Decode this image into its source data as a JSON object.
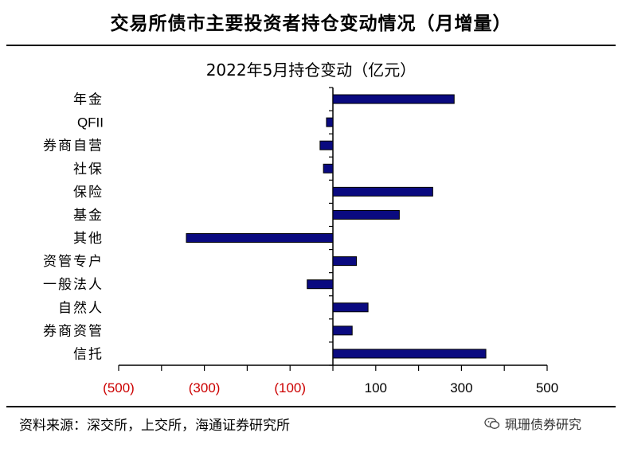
{
  "header": {
    "title": "交易所债市主要投资者持仓变动情况（月增量）"
  },
  "footer": {
    "source": "资料来源：深交所，上交所，海通证券研究所"
  },
  "watermark": {
    "text": "珮珊债券研究",
    "icon": "wechat-icon"
  },
  "colors": {
    "bar_fill": "#0a0a80",
    "bar_stroke": "#000000",
    "negative_tick": "#cc0000",
    "positive_tick": "#000000"
  },
  "chart_data": {
    "type": "bar",
    "orientation": "horizontal",
    "title": "2022年5月持仓变动（亿元）",
    "xlabel": "",
    "ylabel": "",
    "xlim": [
      -500,
      500
    ],
    "grid": false,
    "categories": [
      "年金",
      "QFII",
      "券商自营",
      "社保",
      "保险",
      "基金",
      "其他",
      "资管专户",
      "一般法人",
      "自然人",
      "券商资管",
      "信托"
    ],
    "values": [
      283,
      -15,
      -30,
      -22,
      233,
      155,
      -342,
      55,
      -60,
      82,
      45,
      357
    ],
    "x_ticks": [
      -500,
      -300,
      -100,
      100,
      300,
      500
    ],
    "x_tick_labels": [
      "(500)",
      "(300)",
      "(100)",
      "100",
      "300",
      "500"
    ]
  }
}
